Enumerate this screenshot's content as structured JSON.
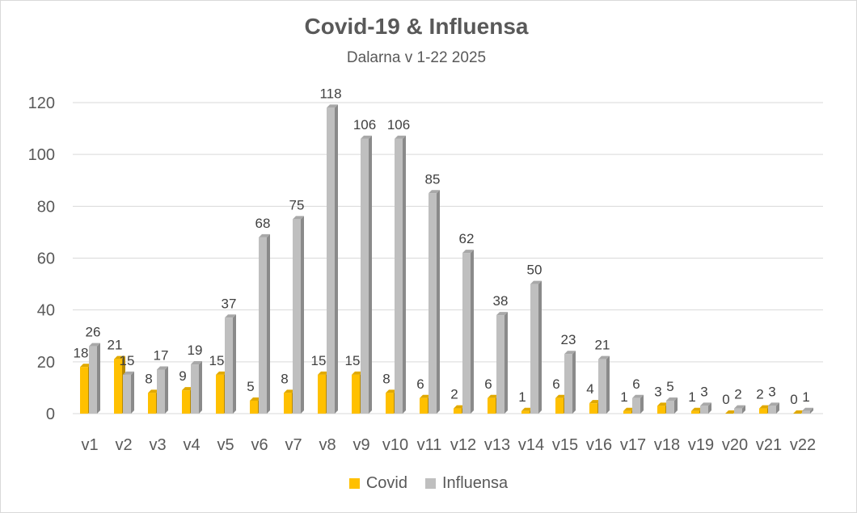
{
  "chart_data": {
    "type": "bar",
    "title": "Covid-19 & Influensa",
    "subtitle": "Dalarna v 1-22 2025",
    "categories": [
      "v1",
      "v2",
      "v3",
      "v4",
      "v5",
      "v6",
      "v7",
      "v8",
      "v9",
      "v10",
      "v11",
      "v12",
      "v13",
      "v14",
      "v15",
      "v16",
      "v17",
      "v18",
      "v19",
      "v20",
      "v21",
      "v22"
    ],
    "series": [
      {
        "name": "Covid",
        "color": "#ffc000",
        "values": [
          18,
          21,
          8,
          9,
          15,
          5,
          8,
          15,
          15,
          8,
          6,
          2,
          6,
          1,
          6,
          4,
          1,
          3,
          1,
          0,
          2,
          0
        ]
      },
      {
        "name": "Influensa",
        "color": "#bfbfbf",
        "values": [
          26,
          15,
          17,
          19,
          37,
          68,
          75,
          118,
          106,
          106,
          85,
          62,
          38,
          50,
          23,
          21,
          6,
          5,
          3,
          2,
          3,
          1
        ]
      }
    ],
    "ylim": [
      0,
      120
    ],
    "yticks": [
      0,
      20,
      40,
      60,
      80,
      100,
      120
    ],
    "grid": true,
    "legend_position": "bottom",
    "style": "3d-clustered-column"
  }
}
